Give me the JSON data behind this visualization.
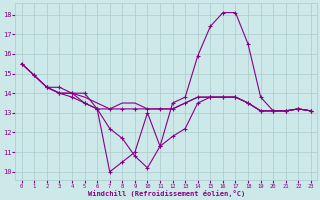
{
  "xlabel": "Windchill (Refroidissement éolien,°C)",
  "bg_color": "#cce8e8",
  "line_color": "#880088",
  "grid_color": "#aacccc",
  "x_values": [
    0,
    1,
    2,
    3,
    4,
    5,
    6,
    7,
    8,
    9,
    10,
    11,
    12,
    13,
    14,
    15,
    16,
    17,
    18,
    19,
    20,
    21,
    22,
    23
  ],
  "line1": [
    15.5,
    14.9,
    14.3,
    14.3,
    14.0,
    14.0,
    13.2,
    10.0,
    10.5,
    11.0,
    13.0,
    11.3,
    13.5,
    13.8,
    15.9,
    17.4,
    18.1,
    18.1,
    16.5,
    13.8,
    13.1,
    13.1,
    13.2,
    13.1
  ],
  "line2": [
    15.5,
    14.9,
    14.3,
    14.0,
    14.0,
    13.5,
    13.2,
    13.2,
    13.2,
    13.2,
    13.2,
    13.2,
    13.2,
    13.5,
    13.8,
    13.8,
    13.8,
    13.8,
    13.5,
    13.1,
    13.1,
    13.1,
    13.2,
    13.1
  ],
  "line3": [
    15.5,
    14.9,
    14.3,
    14.0,
    14.0,
    13.8,
    13.5,
    13.2,
    13.5,
    13.5,
    13.2,
    13.2,
    13.2,
    13.5,
    13.8,
    13.8,
    13.8,
    13.8,
    13.5,
    13.1,
    13.1,
    13.1,
    13.2,
    13.1
  ],
  "line4": [
    null,
    null,
    14.3,
    14.0,
    13.8,
    13.5,
    13.2,
    12.2,
    11.7,
    10.8,
    10.2,
    11.3,
    11.8,
    12.2,
    13.5,
    13.8,
    13.8,
    13.8,
    13.5,
    13.1,
    13.1,
    13.1,
    13.2,
    13.1
  ],
  "ylim": [
    9.6,
    18.6
  ],
  "xlim": [
    -0.5,
    23.5
  ],
  "yticks": [
    10,
    11,
    12,
    13,
    14,
    15,
    16,
    17,
    18
  ],
  "xticks": [
    0,
    1,
    2,
    3,
    4,
    5,
    6,
    7,
    8,
    9,
    10,
    11,
    12,
    13,
    14,
    15,
    16,
    17,
    18,
    19,
    20,
    21,
    22,
    23
  ]
}
